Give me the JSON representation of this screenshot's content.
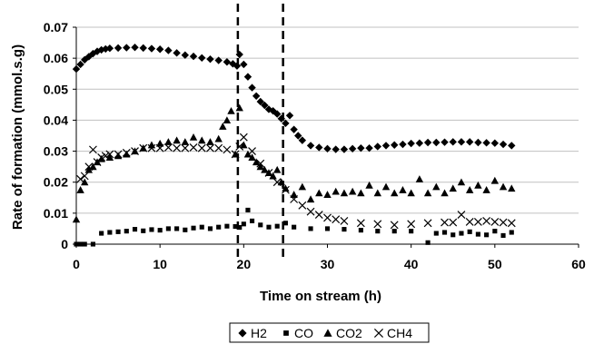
{
  "chart_data": {
    "type": "scatter",
    "title": "",
    "xlabel": "Time on stream (h)",
    "ylabel": "Rate of formation (mmol.s.g)",
    "xlim": [
      0,
      60
    ],
    "ylim": [
      0,
      0.07
    ],
    "xticks": [
      0,
      10,
      20,
      30,
      40,
      50,
      60
    ],
    "yticks": [
      0,
      0.01,
      0.02,
      0.03,
      0.04,
      0.05,
      0.06,
      0.07
    ],
    "xtick_labels": [
      "0",
      "10",
      "20",
      "30",
      "40",
      "50",
      "60"
    ],
    "ytick_labels": [
      "0",
      "0.01",
      "0.02",
      "0.03",
      "0.04",
      "0.05",
      "0.06",
      "0.07"
    ],
    "grid": "horizontal",
    "legend_position": "bottom",
    "vlines": [
      19.3,
      24.7
    ],
    "colors": {
      "marker": "#000000",
      "grid": "#c0c0c0",
      "background": "#ffffff"
    },
    "series": [
      {
        "name": "H2",
        "marker": "diamond",
        "x": [
          0.0,
          0.5,
          1.0,
          1.5,
          2.0,
          2.5,
          3.0,
          3.5,
          4.0,
          5.0,
          6.0,
          7.0,
          8.0,
          9.0,
          10.0,
          11.0,
          12.0,
          13.0,
          14.0,
          15.0,
          16.0,
          17.0,
          18.0,
          18.7,
          19.2,
          19.5,
          20.0,
          20.5,
          21.0,
          21.5,
          22.0,
          22.5,
          23.0,
          23.5,
          24.0,
          24.5,
          25.0,
          25.5,
          26.0,
          26.5,
          27.0,
          28.0,
          29.0,
          30.0,
          31.0,
          32.0,
          33.0,
          34.0,
          35.0,
          36.0,
          37.0,
          38.0,
          39.0,
          40.0,
          41.0,
          42.0,
          43.0,
          44.0,
          45.0,
          46.0,
          47.0,
          48.0,
          49.0,
          50.0,
          51.0,
          52.0
        ],
        "y": [
          0.0565,
          0.058,
          0.0595,
          0.0605,
          0.0615,
          0.0622,
          0.0627,
          0.063,
          0.0632,
          0.0633,
          0.0634,
          0.0635,
          0.0633,
          0.0631,
          0.0629,
          0.0625,
          0.0617,
          0.061,
          0.0606,
          0.0601,
          0.0597,
          0.0593,
          0.0588,
          0.0582,
          0.0575,
          0.0612,
          0.058,
          0.054,
          0.0505,
          0.0478,
          0.046,
          0.0448,
          0.0435,
          0.043,
          0.042,
          0.0405,
          0.039,
          0.0415,
          0.037,
          0.035,
          0.0335,
          0.0318,
          0.0312,
          0.0308,
          0.0306,
          0.0306,
          0.0308,
          0.031,
          0.031,
          0.0315,
          0.0318,
          0.032,
          0.0322,
          0.0325,
          0.0326,
          0.0328,
          0.0328,
          0.0329,
          0.033,
          0.033,
          0.033,
          0.0328,
          0.0327,
          0.0326,
          0.0322,
          0.0318
        ]
      },
      {
        "name": "CO",
        "marker": "square",
        "x": [
          0.0,
          0.5,
          1.0,
          2.0,
          3.0,
          4.0,
          5.0,
          6.0,
          7.0,
          8.0,
          9.0,
          10.0,
          11.0,
          12.0,
          13.0,
          14.0,
          15.0,
          16.0,
          17.0,
          18.0,
          19.0,
          19.5,
          20.0,
          20.5,
          21.0,
          22.0,
          23.0,
          24.0,
          25.0,
          26.0,
          28.0,
          30.0,
          32.0,
          34.0,
          36.0,
          38.0,
          40.0,
          42.0,
          43.0,
          44.0,
          45.0,
          46.0,
          47.0,
          48.0,
          49.0,
          50.0,
          51.0,
          52.0
        ],
        "y": [
          0.0,
          0.0,
          0.0,
          0.0,
          0.0035,
          0.0038,
          0.004,
          0.0042,
          0.0048,
          0.0043,
          0.0047,
          0.0045,
          0.005,
          0.005,
          0.0046,
          0.0052,
          0.0055,
          0.005,
          0.0055,
          0.0058,
          0.0057,
          0.0054,
          0.0065,
          0.011,
          0.0075,
          0.0062,
          0.0055,
          0.0058,
          0.0068,
          0.0055,
          0.005,
          0.005,
          0.0048,
          0.0045,
          0.0042,
          0.0042,
          0.0042,
          0.0005,
          0.0035,
          0.0038,
          0.003,
          0.0035,
          0.004,
          0.0032,
          0.003,
          0.0042,
          0.0028,
          0.0038
        ]
      },
      {
        "name": "CO2",
        "marker": "triangle",
        "x": [
          0.0,
          0.5,
          1.0,
          1.5,
          2.0,
          2.5,
          3.0,
          4.0,
          5.0,
          6.0,
          7.0,
          8.0,
          9.0,
          10.0,
          11.0,
          12.0,
          13.0,
          14.0,
          15.0,
          16.0,
          17.0,
          17.5,
          18.0,
          18.5,
          19.0,
          19.5,
          20.0,
          20.5,
          21.0,
          21.5,
          22.0,
          22.5,
          23.0,
          23.5,
          24.0,
          24.5,
          25.0,
          26.0,
          27.0,
          28.0,
          29.0,
          30.0,
          31.0,
          32.0,
          33.0,
          34.0,
          35.0,
          36.0,
          37.0,
          38.0,
          39.0,
          40.0,
          41.0,
          42.0,
          43.0,
          44.0,
          45.0,
          46.0,
          47.0,
          48.0,
          49.0,
          50.0,
          51.0,
          52.0
        ],
        "y": [
          0.008,
          0.0175,
          0.02,
          0.024,
          0.025,
          0.0265,
          0.0275,
          0.028,
          0.0285,
          0.029,
          0.03,
          0.031,
          0.032,
          0.0325,
          0.033,
          0.0335,
          0.033,
          0.0345,
          0.0335,
          0.033,
          0.034,
          0.038,
          0.04,
          0.043,
          0.029,
          0.044,
          0.032,
          0.029,
          0.028,
          0.0265,
          0.025,
          0.024,
          0.023,
          0.022,
          0.024,
          0.02,
          0.018,
          0.016,
          0.0185,
          0.0145,
          0.0165,
          0.016,
          0.017,
          0.0165,
          0.017,
          0.0165,
          0.019,
          0.0165,
          0.0185,
          0.0165,
          0.0175,
          0.0165,
          0.021,
          0.0165,
          0.0185,
          0.0165,
          0.018,
          0.02,
          0.0175,
          0.019,
          0.0175,
          0.0205,
          0.0185,
          0.018
        ]
      },
      {
        "name": "CH4",
        "marker": "x",
        "x": [
          0.5,
          1.0,
          1.5,
          2.0,
          2.5,
          3.0,
          3.5,
          4.0,
          5.0,
          6.0,
          7.0,
          8.0,
          9.0,
          10.0,
          11.0,
          12.0,
          13.0,
          14.0,
          15.0,
          16.0,
          17.0,
          18.0,
          19.0,
          19.5,
          20.0,
          21.0,
          22.0,
          23.0,
          24.0,
          25.0,
          26.0,
          27.0,
          28.0,
          29.0,
          30.0,
          31.0,
          32.0,
          34.0,
          36.0,
          38.0,
          40.0,
          42.0,
          44.0,
          45.0,
          46.0,
          47.0,
          48.0,
          49.0,
          50.0,
          51.0,
          52.0
        ],
        "y": [
          0.021,
          0.022,
          0.025,
          0.0305,
          0.0265,
          0.028,
          0.0285,
          0.029,
          0.029,
          0.0295,
          0.03,
          0.031,
          0.031,
          0.031,
          0.0312,
          0.031,
          0.031,
          0.0312,
          0.031,
          0.031,
          0.031,
          0.0305,
          0.029,
          0.0315,
          0.0345,
          0.03,
          0.026,
          0.023,
          0.02,
          0.0175,
          0.0145,
          0.0125,
          0.0105,
          0.0095,
          0.0085,
          0.008,
          0.0075,
          0.0068,
          0.0065,
          0.0062,
          0.0065,
          0.0068,
          0.007,
          0.007,
          0.0095,
          0.0072,
          0.0072,
          0.0075,
          0.0072,
          0.007,
          0.0068
        ]
      }
    ]
  }
}
